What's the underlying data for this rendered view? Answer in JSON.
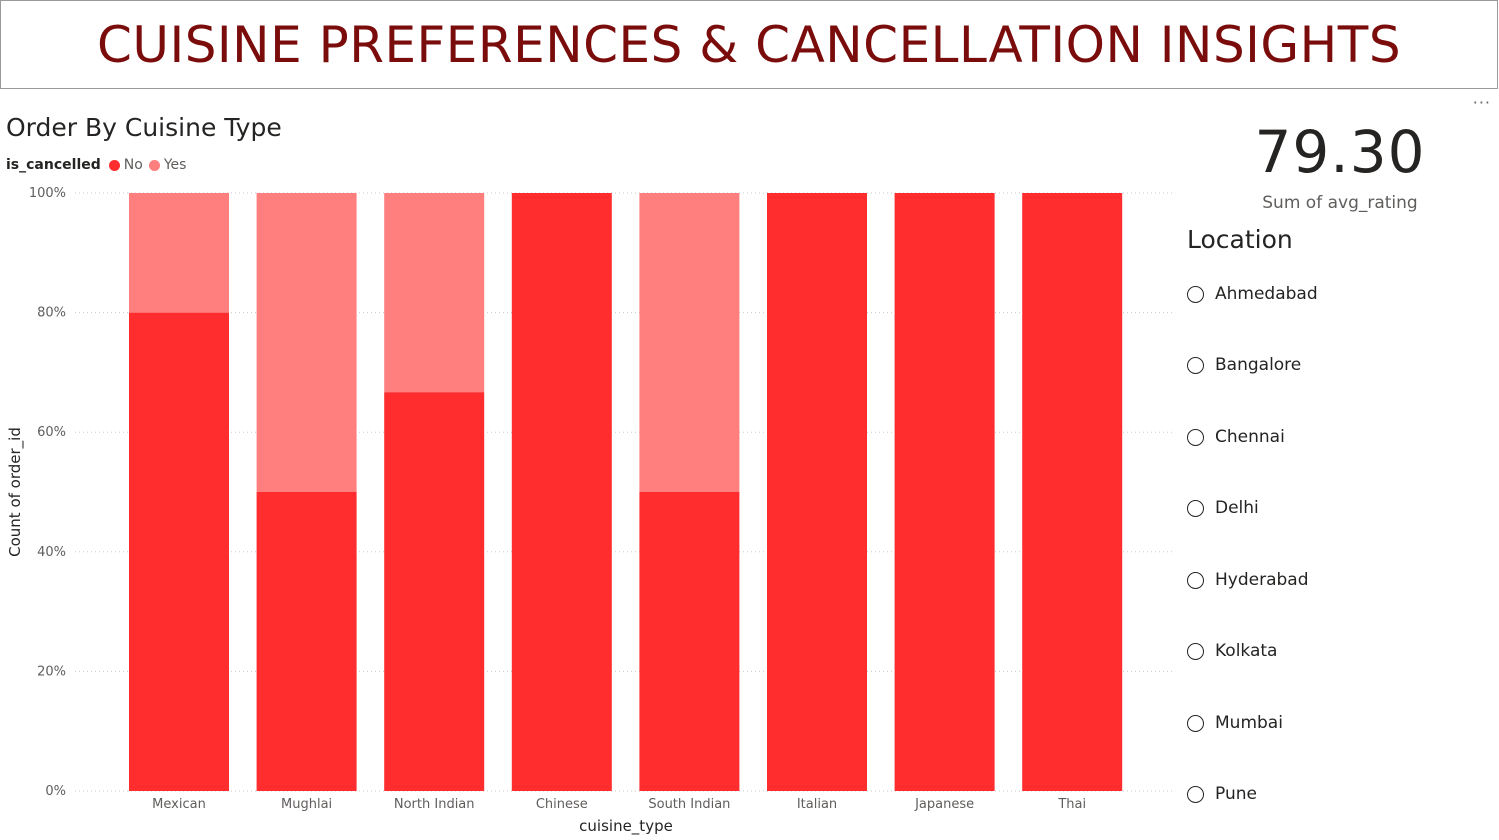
{
  "header": {
    "title": "CUISINE PREFERENCES & CANCELLATION INSIGHTS"
  },
  "visual_menu_icon": "more-options-icon",
  "chart": {
    "title": "Order By Cuisine Type",
    "legend_title": "is_cancelled",
    "legend": [
      {
        "label": "No",
        "color": "#ff2d2d"
      },
      {
        "label": "Yes",
        "color": "#ff7f7f"
      }
    ]
  },
  "chart_data": {
    "type": "bar",
    "stacked": "100%",
    "title": "Order By Cuisine Type",
    "xlabel": "cuisine_type",
    "ylabel": "Count of order_id",
    "ylim": [
      0,
      100
    ],
    "yticks": [
      "0%",
      "20%",
      "40%",
      "60%",
      "80%",
      "100%"
    ],
    "grid": true,
    "legend_placement": "top-left",
    "categories": [
      "Mexican",
      "Mughlai",
      "North Indian",
      "Chinese",
      "South Indian",
      "Italian",
      "Japanese",
      "Thai"
    ],
    "series": [
      {
        "name": "No",
        "color": "#ff2d2d",
        "values": [
          80,
          50,
          66.7,
          100,
          50,
          100,
          100,
          100
        ]
      },
      {
        "name": "Yes",
        "color": "#ff7f7f",
        "values": [
          20,
          50,
          33.3,
          0,
          50,
          0,
          0,
          0
        ]
      }
    ]
  },
  "card": {
    "value": "79.30",
    "label": "Sum of avg_rating"
  },
  "slicer": {
    "title": "Location",
    "items": [
      "Ahmedabad",
      "Bangalore",
      "Chennai",
      "Delhi",
      "Hyderabad",
      "Kolkata",
      "Mumbai",
      "Pune"
    ]
  }
}
